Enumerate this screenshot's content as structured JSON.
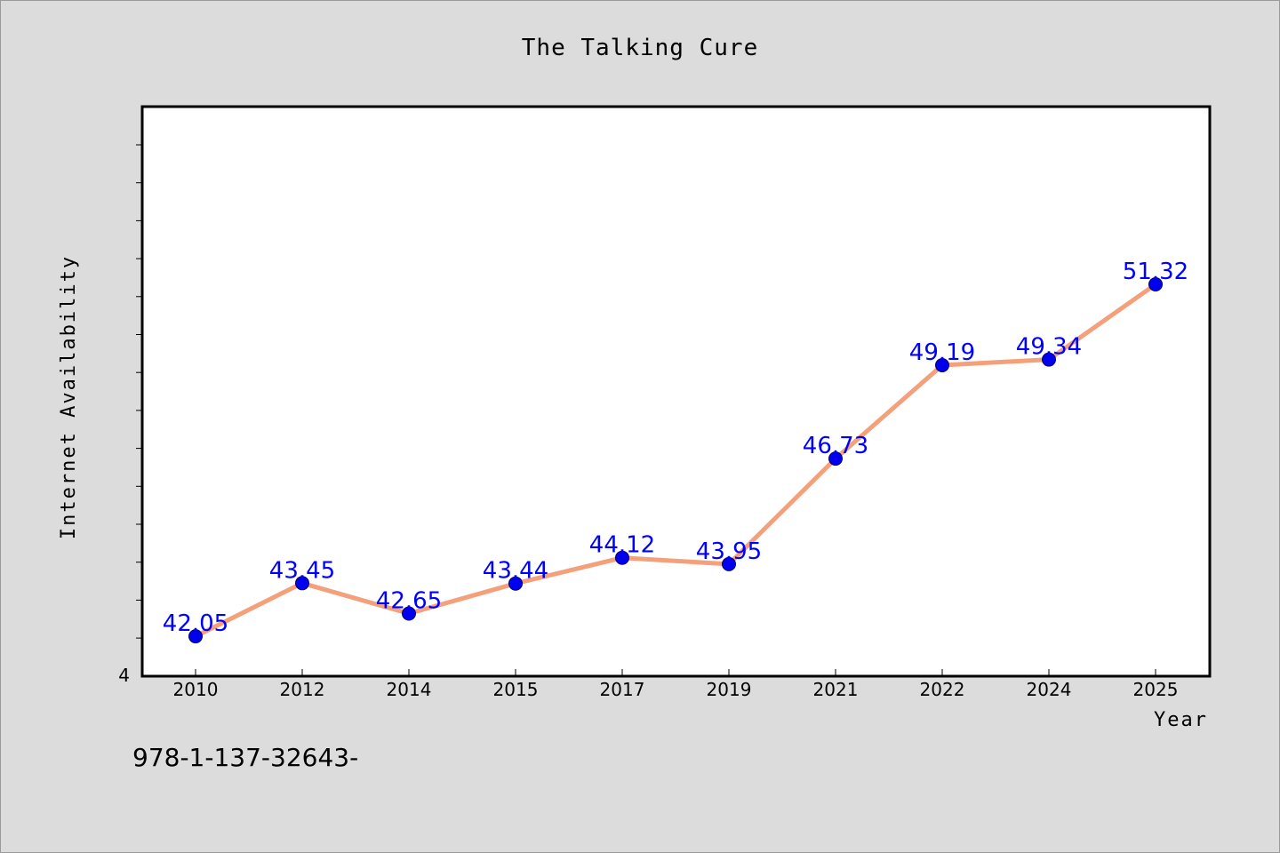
{
  "chart_data": {
    "type": "line",
    "title": "The Talking Cure",
    "xlabel": "Year",
    "ylabel": "Internet Availability",
    "categories": [
      "2010",
      "2012",
      "2014",
      "2015",
      "2017",
      "2019",
      "2021",
      "2022",
      "2024",
      "2025"
    ],
    "values": [
      42.05,
      43.45,
      42.65,
      43.44,
      44.12,
      43.95,
      46.73,
      49.19,
      49.34,
      51.32
    ],
    "data_labels": [
      "42.05",
      "43.45",
      "42.65",
      "43.44",
      "44.12",
      "43.95",
      "46.73",
      "49.19",
      "49.34",
      "51.32"
    ],
    "y_tick_label": "4",
    "ylim": [
      41.0,
      56.0
    ],
    "grid": false,
    "legend": "none",
    "line_color": "#f4a07a",
    "marker_color": "#0000ee",
    "label_color": "#0000ff"
  },
  "footer": {
    "code": "978-1-137-32643-"
  }
}
